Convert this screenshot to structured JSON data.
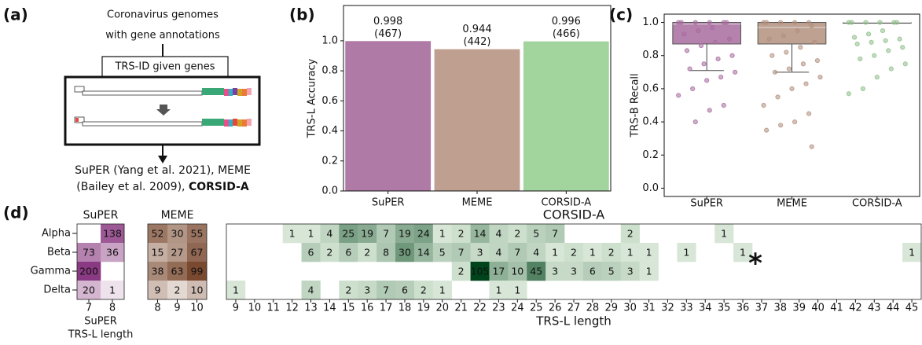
{
  "panel_labels": [
    "(a)",
    "(b)",
    "(c)",
    "(d)"
  ],
  "diagram": {
    "input_lines": [
      "Coronavirus genomes",
      "with gene annotations"
    ],
    "tool": "TRS-ID given genes",
    "output_line1": "SuPER (Yang et al. 2021), MEME",
    "output_line2": [
      "(Bailey et al. 2009), ",
      "CORSID-A"
    ]
  },
  "chart_data": [
    {
      "type": "bar",
      "ylabel": "TRS-L Accuracy",
      "categories": [
        "SuPER",
        "MEME",
        "CORSID-A"
      ],
      "values": [
        0.998,
        0.944,
        0.996
      ],
      "annotations": [
        "(467)",
        "(442)",
        "(466)"
      ],
      "colors": [
        "#b07aa6",
        "#bf9f8f",
        "#a2d49e"
      ],
      "ylim": [
        0,
        1.235
      ],
      "yticks": [
        {
          "value": 0,
          "label": "0.0"
        },
        0.2,
        0.4,
        0.6,
        0.8,
        {
          "value": 1,
          "label": "1.0"
        }
      ]
    },
    {
      "type": "box",
      "ylabel": "TRS-B Recall",
      "categories": [
        "SuPER",
        "MEME",
        "CORSID-A"
      ],
      "colors": [
        "#a86b9f",
        "#b3907e",
        "#8fbf8a"
      ],
      "boxes": [
        {
          "whislo": 0.71,
          "q1": 0.87,
          "med": 0.99,
          "q3": 1.0,
          "whishi": 1.0
        },
        {
          "whislo": 0.7,
          "q1": 0.87,
          "med": 0.97,
          "q3": 1.0,
          "whishi": 1.0
        },
        {
          "whislo": 1.0,
          "q1": 1.0,
          "med": 1.0,
          "q3": 1.0,
          "whishi": 1.0
        }
      ],
      "points": [
        [
          1,
          1,
          1,
          1,
          1,
          1,
          0.97,
          0.95,
          0.93,
          0.9,
          0.88,
          0.86,
          0.83,
          0.8,
          0.78,
          0.75,
          0.72,
          0.7,
          0.67,
          0.65,
          0.6,
          0.56,
          0.5,
          0.47,
          0.4
        ],
        [
          1,
          1,
          1,
          1,
          1,
          0.98,
          0.95,
          0.92,
          0.9,
          0.88,
          0.85,
          0.82,
          0.8,
          0.77,
          0.75,
          0.72,
          0.7,
          0.67,
          0.63,
          0.6,
          0.55,
          0.5,
          0.45,
          0.4,
          0.38,
          0.35,
          0.25
        ],
        [
          1,
          1,
          1,
          1,
          1,
          1,
          0.95,
          0.93,
          0.91,
          0.9,
          0.89,
          0.88,
          0.87,
          0.85,
          0.83,
          0.8,
          0.78,
          0.75,
          0.72,
          0.67,
          0.6,
          0.57
        ]
      ],
      "ylim": [
        -0.05,
        1.05
      ],
      "yticks": [
        {
          "value": 0,
          "label": "0.0"
        },
        0.2,
        0.4,
        0.6,
        0.8,
        {
          "value": 1,
          "label": "1.0"
        }
      ]
    },
    {
      "type": "heatmap",
      "title": "SuPER",
      "xlabel": [
        "SuPER",
        "TRS-L length"
      ],
      "x": [
        7,
        8
      ],
      "y": [
        "Alpha",
        "Beta",
        "Gamma",
        "Delta"
      ],
      "values": [
        [
          null,
          138
        ],
        [
          73,
          36
        ],
        [
          200,
          null
        ],
        [
          20,
          1
        ]
      ],
      "colormap": [
        "#f6f0f5",
        "#8a3a82"
      ]
    },
    {
      "type": "heatmap",
      "title": "MEME",
      "x": [
        8,
        9,
        10
      ],
      "values": [
        [
          52,
          30,
          55
        ],
        [
          15,
          27,
          67
        ],
        [
          38,
          63,
          99
        ],
        [
          9,
          2,
          10
        ]
      ],
      "colormap": [
        "#f5f0ed",
        "#7a4a30"
      ]
    },
    {
      "type": "heatmap",
      "title": "CORSID-A",
      "xlabel": [
        "TRS-L length"
      ],
      "x": [
        9,
        10,
        11,
        12,
        13,
        14,
        15,
        16,
        17,
        18,
        19,
        20,
        21,
        22,
        23,
        24,
        25,
        26,
        27,
        28,
        29,
        30,
        31,
        32,
        33,
        34,
        35,
        36,
        37,
        38,
        39,
        40,
        41,
        42,
        43,
        44,
        45
      ],
      "values": [
        [
          null,
          null,
          null,
          1,
          1,
          4,
          25,
          19,
          7,
          19,
          24,
          1,
          2,
          14,
          4,
          2,
          5,
          7,
          null,
          null,
          null,
          2,
          null,
          null,
          null,
          null,
          1,
          null,
          null,
          null,
          null,
          null,
          null,
          null,
          null,
          null,
          null
        ],
        [
          null,
          null,
          null,
          null,
          6,
          2,
          6,
          2,
          8,
          30,
          14,
          5,
          7,
          3,
          4,
          7,
          4,
          1,
          2,
          1,
          2,
          1,
          1,
          null,
          1,
          null,
          null,
          1,
          null,
          null,
          null,
          null,
          null,
          null,
          null,
          null,
          1
        ],
        [
          null,
          null,
          null,
          null,
          null,
          null,
          null,
          null,
          null,
          null,
          null,
          null,
          2,
          105,
          17,
          10,
          45,
          3,
          3,
          6,
          5,
          3,
          1,
          null,
          null,
          null,
          null,
          null,
          null,
          null,
          null,
          null,
          null,
          null,
          null,
          null,
          null
        ],
        [
          1,
          null,
          null,
          null,
          4,
          null,
          2,
          3,
          7,
          6,
          2,
          1,
          null,
          null,
          1,
          1,
          null,
          null,
          null,
          null,
          null,
          null,
          null,
          null,
          null,
          null,
          null,
          null,
          null,
          null,
          null,
          null,
          null,
          null,
          null,
          null,
          null
        ]
      ],
      "colormap": [
        "#eef8ea",
        "#00441b"
      ],
      "annotation": "*"
    }
  ]
}
